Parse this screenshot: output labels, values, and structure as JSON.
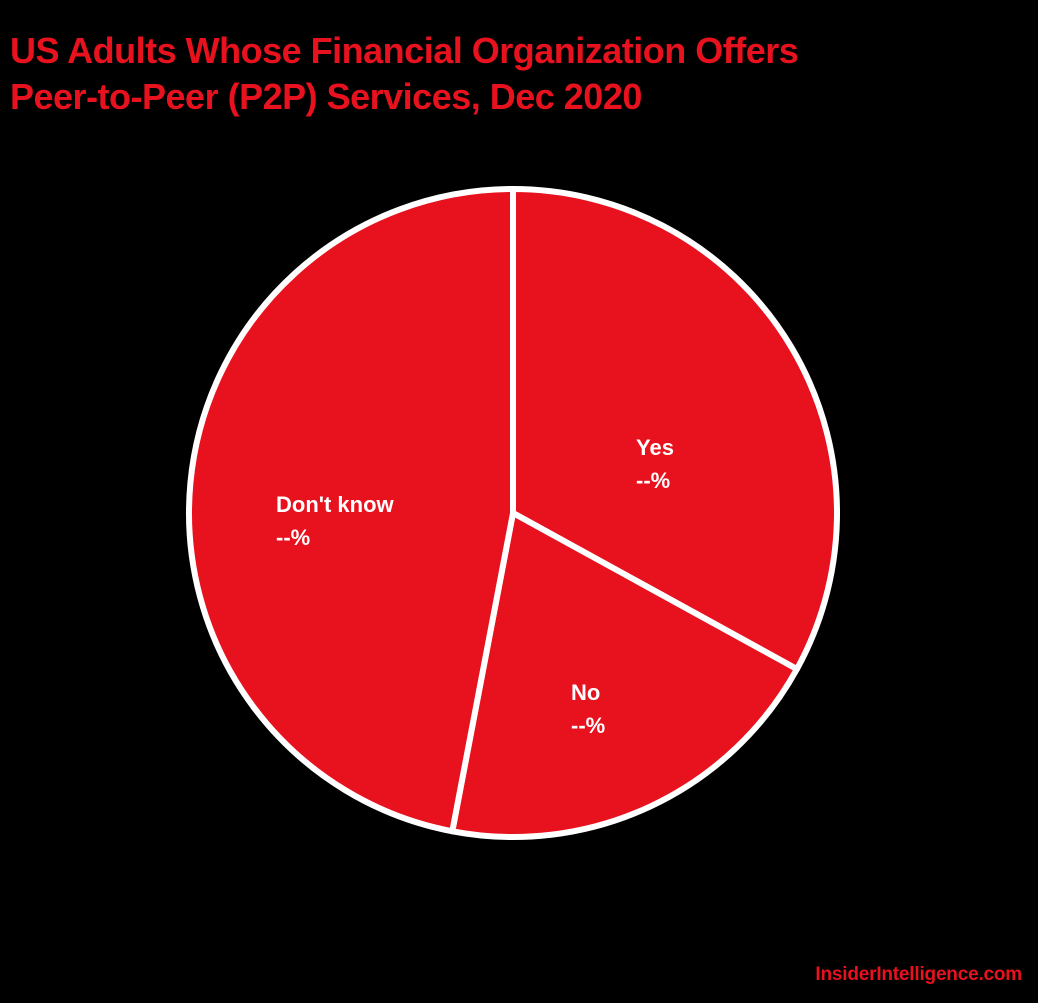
{
  "chart_data": {
    "type": "pie",
    "title": "US Adults Whose Financial Organization Offers Peer-to-Peer (P2P) Services, Dec 2020",
    "title_lines": [
      "US Adults Whose Financial Organization Offers",
      "Peer-to-Peer (P2P) Services, Dec 2020"
    ],
    "categories": [
      "Yes",
      "No",
      "Don't know"
    ],
    "values": [
      33,
      20,
      47
    ],
    "value_labels": [
      "--%",
      "--%",
      "--%"
    ],
    "value_note": "Slice sizes estimated from geometry; labels show --%",
    "colors": [
      "#e8111e",
      "#e8111e",
      "#e8111e"
    ],
    "slice_border_color": "#ffffff",
    "start_angle_deg": 0,
    "direction": "clockwise",
    "legend": "none (inline labels)",
    "grid": false
  },
  "labels": [
    {
      "name": "Yes",
      "pct": "--%"
    },
    {
      "name": "No",
      "pct": "--%"
    },
    {
      "name": "Don't know",
      "pct": "--%"
    }
  ],
  "source": "InsiderIntelligence.com",
  "colors": {
    "background": "#000000",
    "accent": "#e8111e",
    "label_text": "#ffffff"
  }
}
